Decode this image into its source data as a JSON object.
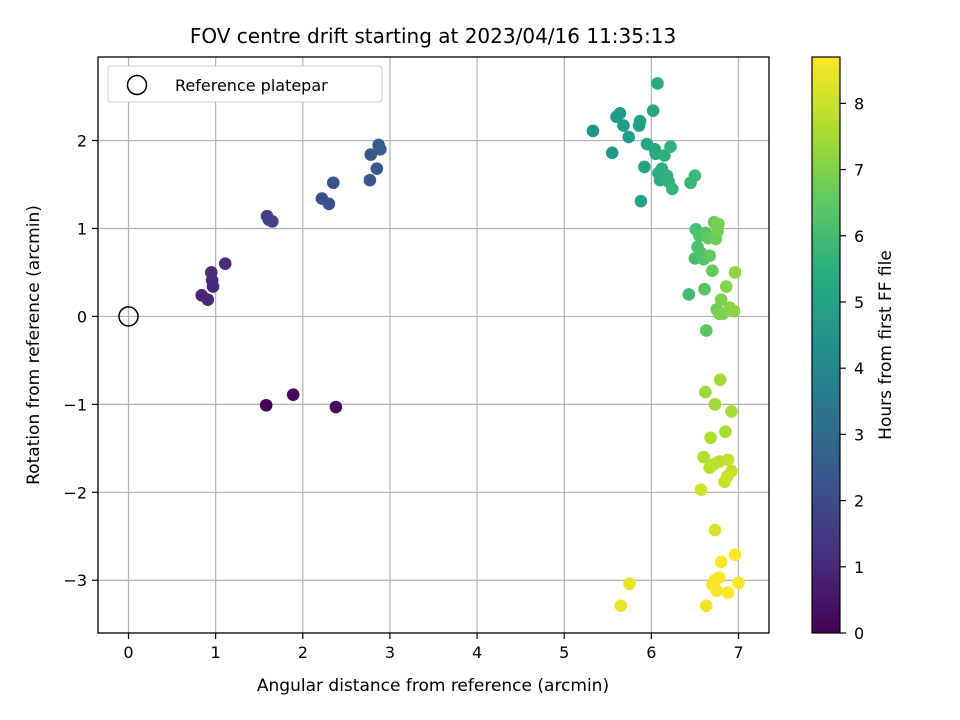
{
  "chart_data": {
    "type": "scatter",
    "title": "FOV centre drift starting at 2023/04/16 11:35:13",
    "xlabel": "Angular distance from reference (arcmin)",
    "ylabel": "Rotation from reference (arcmin)",
    "xlim": [
      -0.35,
      7.35
    ],
    "ylim": [
      -3.6,
      2.95
    ],
    "xticks": [
      0,
      1,
      2,
      3,
      4,
      5,
      6,
      7
    ],
    "yticks": [
      -3,
      -2,
      -1,
      0,
      1,
      2
    ],
    "grid": true,
    "colormap": "viridis",
    "colorbar": {
      "label": "Hours from first FF file",
      "range": [
        0,
        8.7
      ],
      "ticks": [
        0,
        1,
        2,
        3,
        4,
        5,
        6,
        7,
        8
      ]
    },
    "legend": {
      "placement": "top-left",
      "entries": [
        {
          "label": "Reference platepar",
          "marker": "hollow-circle"
        }
      ]
    },
    "reference_point": {
      "x": 0,
      "y": 0
    },
    "points": [
      {
        "x": 1.58,
        "y": -1.01,
        "t": 0.05
      },
      {
        "x": 1.89,
        "y": -0.89,
        "t": 0.15
      },
      {
        "x": 2.38,
        "y": -1.03,
        "t": 0.25
      },
      {
        "x": 0.84,
        "y": 0.24,
        "t": 0.9
      },
      {
        "x": 0.91,
        "y": 0.19,
        "t": 0.95
      },
      {
        "x": 0.97,
        "y": 0.34,
        "t": 1.0
      },
      {
        "x": 0.96,
        "y": 0.41,
        "t": 1.05
      },
      {
        "x": 0.95,
        "y": 0.5,
        "t": 1.1
      },
      {
        "x": 1.11,
        "y": 0.6,
        "t": 1.15
      },
      {
        "x": 1.59,
        "y": 1.14,
        "t": 1.65
      },
      {
        "x": 1.61,
        "y": 1.1,
        "t": 1.7
      },
      {
        "x": 1.65,
        "y": 1.08,
        "t": 1.75
      },
      {
        "x": 2.22,
        "y": 1.34,
        "t": 2.1
      },
      {
        "x": 2.3,
        "y": 1.28,
        "t": 2.15
      },
      {
        "x": 2.35,
        "y": 1.52,
        "t": 2.2
      },
      {
        "x": 2.77,
        "y": 1.55,
        "t": 2.35
      },
      {
        "x": 2.78,
        "y": 1.84,
        "t": 2.4
      },
      {
        "x": 2.85,
        "y": 1.68,
        "t": 2.45
      },
      {
        "x": 2.87,
        "y": 1.95,
        "t": 2.5
      },
      {
        "x": 2.89,
        "y": 1.9,
        "t": 2.55
      },
      {
        "x": 5.33,
        "y": 2.11,
        "t": 4.6
      },
      {
        "x": 5.55,
        "y": 1.86,
        "t": 4.65
      },
      {
        "x": 5.6,
        "y": 2.27,
        "t": 4.7
      },
      {
        "x": 5.64,
        "y": 2.31,
        "t": 4.75
      },
      {
        "x": 5.68,
        "y": 2.17,
        "t": 4.8
      },
      {
        "x": 5.74,
        "y": 2.04,
        "t": 4.85
      },
      {
        "x": 5.86,
        "y": 2.17,
        "t": 4.9
      },
      {
        "x": 5.87,
        "y": 2.22,
        "t": 4.95
      },
      {
        "x": 5.88,
        "y": 1.31,
        "t": 5.0
      },
      {
        "x": 5.92,
        "y": 1.7,
        "t": 5.05
      },
      {
        "x": 5.95,
        "y": 1.96,
        "t": 5.1
      },
      {
        "x": 6.02,
        "y": 2.34,
        "t": 5.15
      },
      {
        "x": 6.04,
        "y": 1.9,
        "t": 5.2
      },
      {
        "x": 6.05,
        "y": 1.85,
        "t": 5.25
      },
      {
        "x": 6.07,
        "y": 2.65,
        "t": 5.3
      },
      {
        "x": 6.08,
        "y": 1.63,
        "t": 5.35
      },
      {
        "x": 6.1,
        "y": 1.55,
        "t": 5.4
      },
      {
        "x": 6.12,
        "y": 1.68,
        "t": 5.45
      },
      {
        "x": 6.15,
        "y": 1.83,
        "t": 5.5
      },
      {
        "x": 6.18,
        "y": 1.6,
        "t": 5.55
      },
      {
        "x": 6.2,
        "y": 1.53,
        "t": 5.6
      },
      {
        "x": 6.22,
        "y": 1.93,
        "t": 5.65
      },
      {
        "x": 6.24,
        "y": 1.45,
        "t": 5.7
      },
      {
        "x": 6.45,
        "y": 1.52,
        "t": 5.8
      },
      {
        "x": 6.5,
        "y": 1.6,
        "t": 5.85
      },
      {
        "x": 6.43,
        "y": 0.25,
        "t": 6.0
      },
      {
        "x": 6.5,
        "y": 0.66,
        "t": 6.05
      },
      {
        "x": 6.51,
        "y": 0.99,
        "t": 6.1
      },
      {
        "x": 6.53,
        "y": 0.79,
        "t": 6.15
      },
      {
        "x": 6.55,
        "y": 0.92,
        "t": 6.2
      },
      {
        "x": 6.57,
        "y": 0.72,
        "t": 6.25
      },
      {
        "x": 6.6,
        "y": 0.65,
        "t": 6.3
      },
      {
        "x": 6.61,
        "y": 0.31,
        "t": 6.35
      },
      {
        "x": 6.62,
        "y": 0.95,
        "t": 6.4
      },
      {
        "x": 6.63,
        "y": -0.16,
        "t": 6.45
      },
      {
        "x": 6.65,
        "y": 0.89,
        "t": 6.5
      },
      {
        "x": 6.67,
        "y": 0.69,
        "t": 6.55
      },
      {
        "x": 6.7,
        "y": 0.52,
        "t": 6.6
      },
      {
        "x": 6.72,
        "y": 1.07,
        "t": 6.65
      },
      {
        "x": 6.74,
        "y": 0.88,
        "t": 6.7
      },
      {
        "x": 6.75,
        "y": 0.08,
        "t": 6.75
      },
      {
        "x": 6.76,
        "y": 0.97,
        "t": 6.8
      },
      {
        "x": 6.77,
        "y": 1.05,
        "t": 6.85
      },
      {
        "x": 6.78,
        "y": 0.03,
        "t": 6.9
      },
      {
        "x": 6.8,
        "y": 0.19,
        "t": 6.95
      },
      {
        "x": 6.82,
        "y": 0.03,
        "t": 7.0
      },
      {
        "x": 6.86,
        "y": 0.34,
        "t": 7.05
      },
      {
        "x": 6.9,
        "y": 0.1,
        "t": 7.1
      },
      {
        "x": 6.95,
        "y": 0.06,
        "t": 7.15
      },
      {
        "x": 6.96,
        "y": 0.5,
        "t": 7.2
      },
      {
        "x": 6.62,
        "y": -0.86,
        "t": 7.4
      },
      {
        "x": 6.73,
        "y": -1.0,
        "t": 7.45
      },
      {
        "x": 6.79,
        "y": -0.72,
        "t": 7.5
      },
      {
        "x": 6.85,
        "y": -1.31,
        "t": 7.55
      },
      {
        "x": 6.92,
        "y": -1.08,
        "t": 7.6
      },
      {
        "x": 6.68,
        "y": -1.38,
        "t": 7.65
      },
      {
        "x": 6.6,
        "y": -1.6,
        "t": 7.7
      },
      {
        "x": 6.67,
        "y": -1.72,
        "t": 7.75
      },
      {
        "x": 6.72,
        "y": -1.68,
        "t": 7.8
      },
      {
        "x": 6.78,
        "y": -1.65,
        "t": 7.85
      },
      {
        "x": 6.84,
        "y": -1.88,
        "t": 7.9
      },
      {
        "x": 6.88,
        "y": -1.63,
        "t": 7.95
      },
      {
        "x": 6.92,
        "y": -1.76,
        "t": 8.0
      },
      {
        "x": 6.87,
        "y": -1.82,
        "t": 8.05
      },
      {
        "x": 6.57,
        "y": -1.97,
        "t": 8.1
      },
      {
        "x": 6.73,
        "y": -2.43,
        "t": 8.2
      },
      {
        "x": 5.75,
        "y": -3.04,
        "t": 8.4
      },
      {
        "x": 5.65,
        "y": -3.29,
        "t": 8.45
      },
      {
        "x": 6.63,
        "y": -3.29,
        "t": 8.5
      },
      {
        "x": 6.7,
        "y": -3.05,
        "t": 8.55
      },
      {
        "x": 6.73,
        "y": -3.0,
        "t": 8.6
      },
      {
        "x": 6.75,
        "y": -3.12,
        "t": 8.62
      },
      {
        "x": 6.78,
        "y": -2.97,
        "t": 8.64
      },
      {
        "x": 6.8,
        "y": -2.79,
        "t": 8.66
      },
      {
        "x": 6.88,
        "y": -3.14,
        "t": 8.68
      },
      {
        "x": 6.96,
        "y": -2.71,
        "t": 8.7
      },
      {
        "x": 7.0,
        "y": -3.03,
        "t": 8.7
      }
    ]
  }
}
